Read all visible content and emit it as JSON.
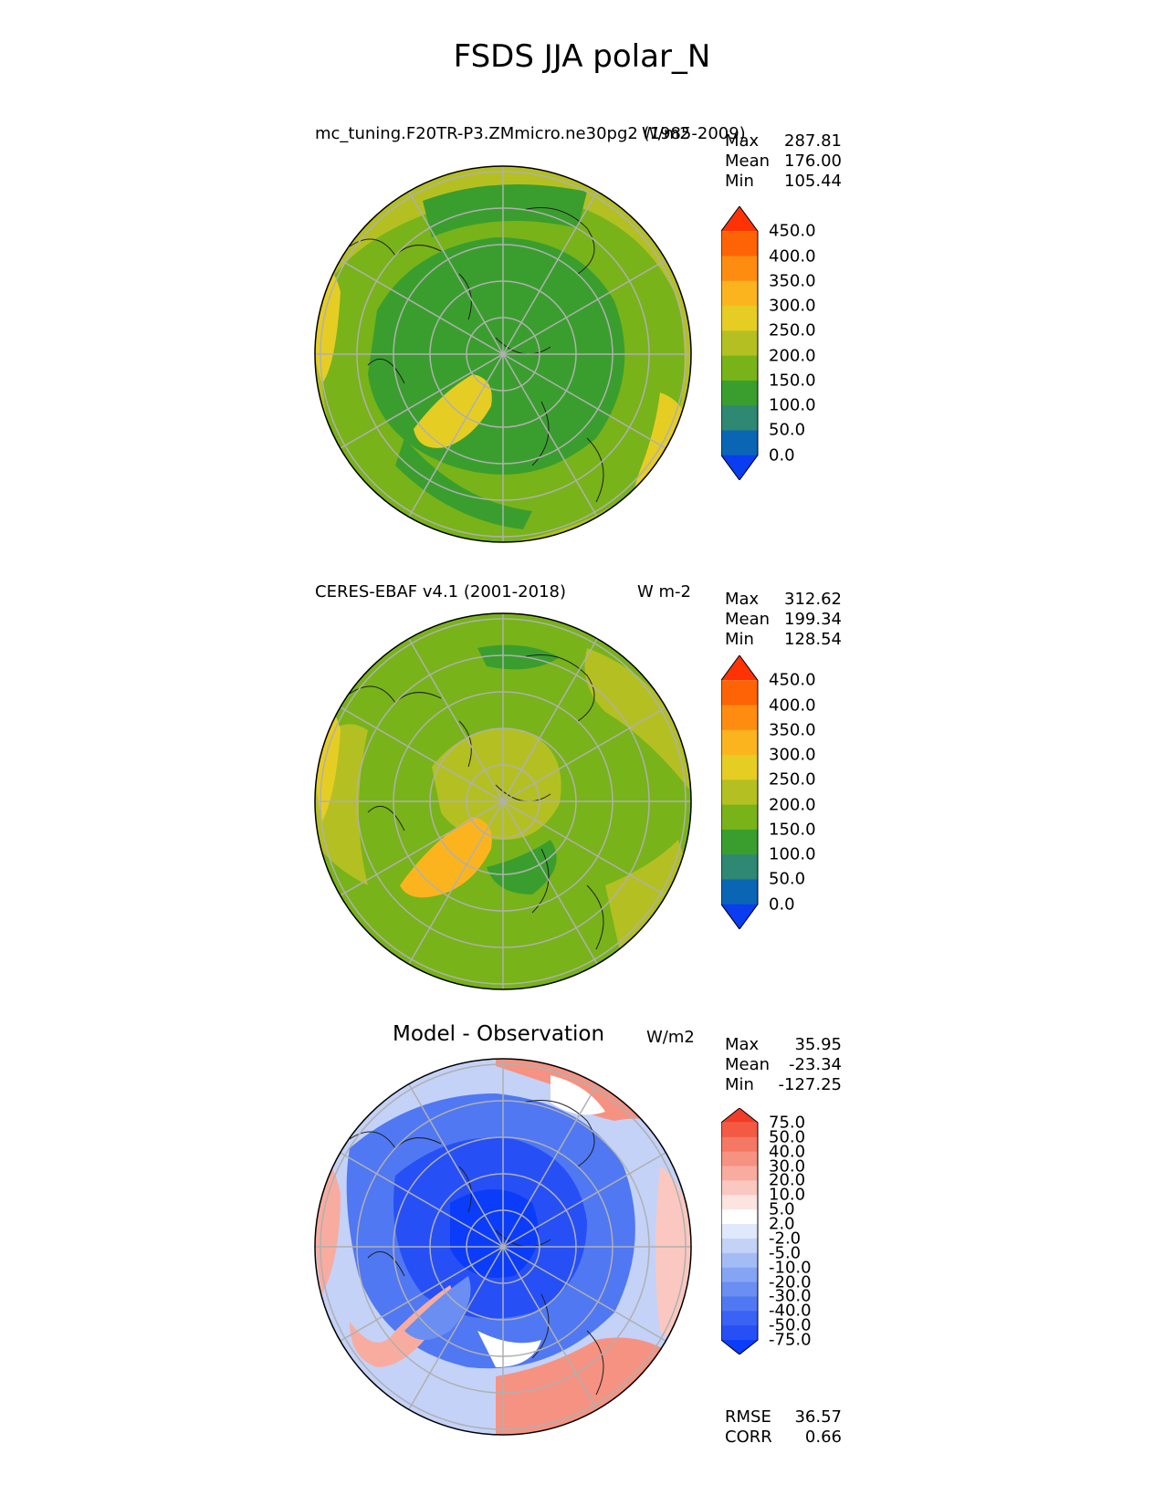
{
  "figure_title": "FSDS JJA polar_N",
  "panels": [
    {
      "title": "mc_tuning.F20TR-P3.ZMmicro.ne30pg2 (1985-2009)",
      "units": "W/m2",
      "stats": [
        {
          "label": "Max",
          "value": "287.81"
        },
        {
          "label": "Mean",
          "value": "176.00"
        },
        {
          "label": "Min",
          "value": "105.44"
        }
      ],
      "colorbar": {
        "ticks": [
          "0.0",
          "50.0",
          "100.0",
          "150.0",
          "200.0",
          "250.0",
          "300.0",
          "350.0",
          "400.0",
          "450.0"
        ],
        "colors": [
          "#0a3cf0",
          "#0a66b4",
          "#2e8872",
          "#3a9e2e",
          "#78b31a",
          "#b4c022",
          "#e6cd24",
          "#fcb41e",
          "#fe8c10",
          "#fe6406",
          "#fe3204"
        ]
      }
    },
    {
      "title": "CERES-EBAF v4.1 (2001-2018)",
      "units": "W m-2",
      "stats": [
        {
          "label": "Max",
          "value": "312.62"
        },
        {
          "label": "Mean",
          "value": "199.34"
        },
        {
          "label": "Min",
          "value": "128.54"
        }
      ],
      "colorbar": {
        "ticks": [
          "0.0",
          "50.0",
          "100.0",
          "150.0",
          "200.0",
          "250.0",
          "300.0",
          "350.0",
          "400.0",
          "450.0"
        ],
        "colors": [
          "#0a3cf0",
          "#0a66b4",
          "#2e8872",
          "#3a9e2e",
          "#78b31a",
          "#b4c022",
          "#e6cd24",
          "#fcb41e",
          "#fe8c10",
          "#fe6406",
          "#fe3204"
        ]
      }
    },
    {
      "title": "Model - Observation",
      "units": "W/m2",
      "stats": [
        {
          "label": "Max",
          "value": "35.95"
        },
        {
          "label": "Mean",
          "value": "-23.34"
        },
        {
          "label": "Min",
          "value": "-127.25"
        }
      ],
      "colorbar": {
        "ticks": [
          "-75.0",
          "-50.0",
          "-40.0",
          "-30.0",
          "-20.0",
          "-10.0",
          "-5.0",
          "-2.0",
          "2.0",
          "5.0",
          "10.0",
          "20.0",
          "30.0",
          "40.0",
          "50.0",
          "75.0"
        ],
        "colors": [
          "#0a3cfa",
          "#2650f6",
          "#3a62f4",
          "#5078f2",
          "#6a8ef2",
          "#86a4f4",
          "#a4bcf6",
          "#c4d2f8",
          "#e0e8fc",
          "#ffffff",
          "#fce4e0",
          "#fac8c0",
          "#f8aca0",
          "#f69282",
          "#f47864",
          "#f25a44",
          "#f03c28"
        ]
      },
      "extra_stats": [
        {
          "label": "RMSE",
          "value": "36.57"
        },
        {
          "label": "CORR",
          "value": "0.66"
        }
      ]
    }
  ]
}
